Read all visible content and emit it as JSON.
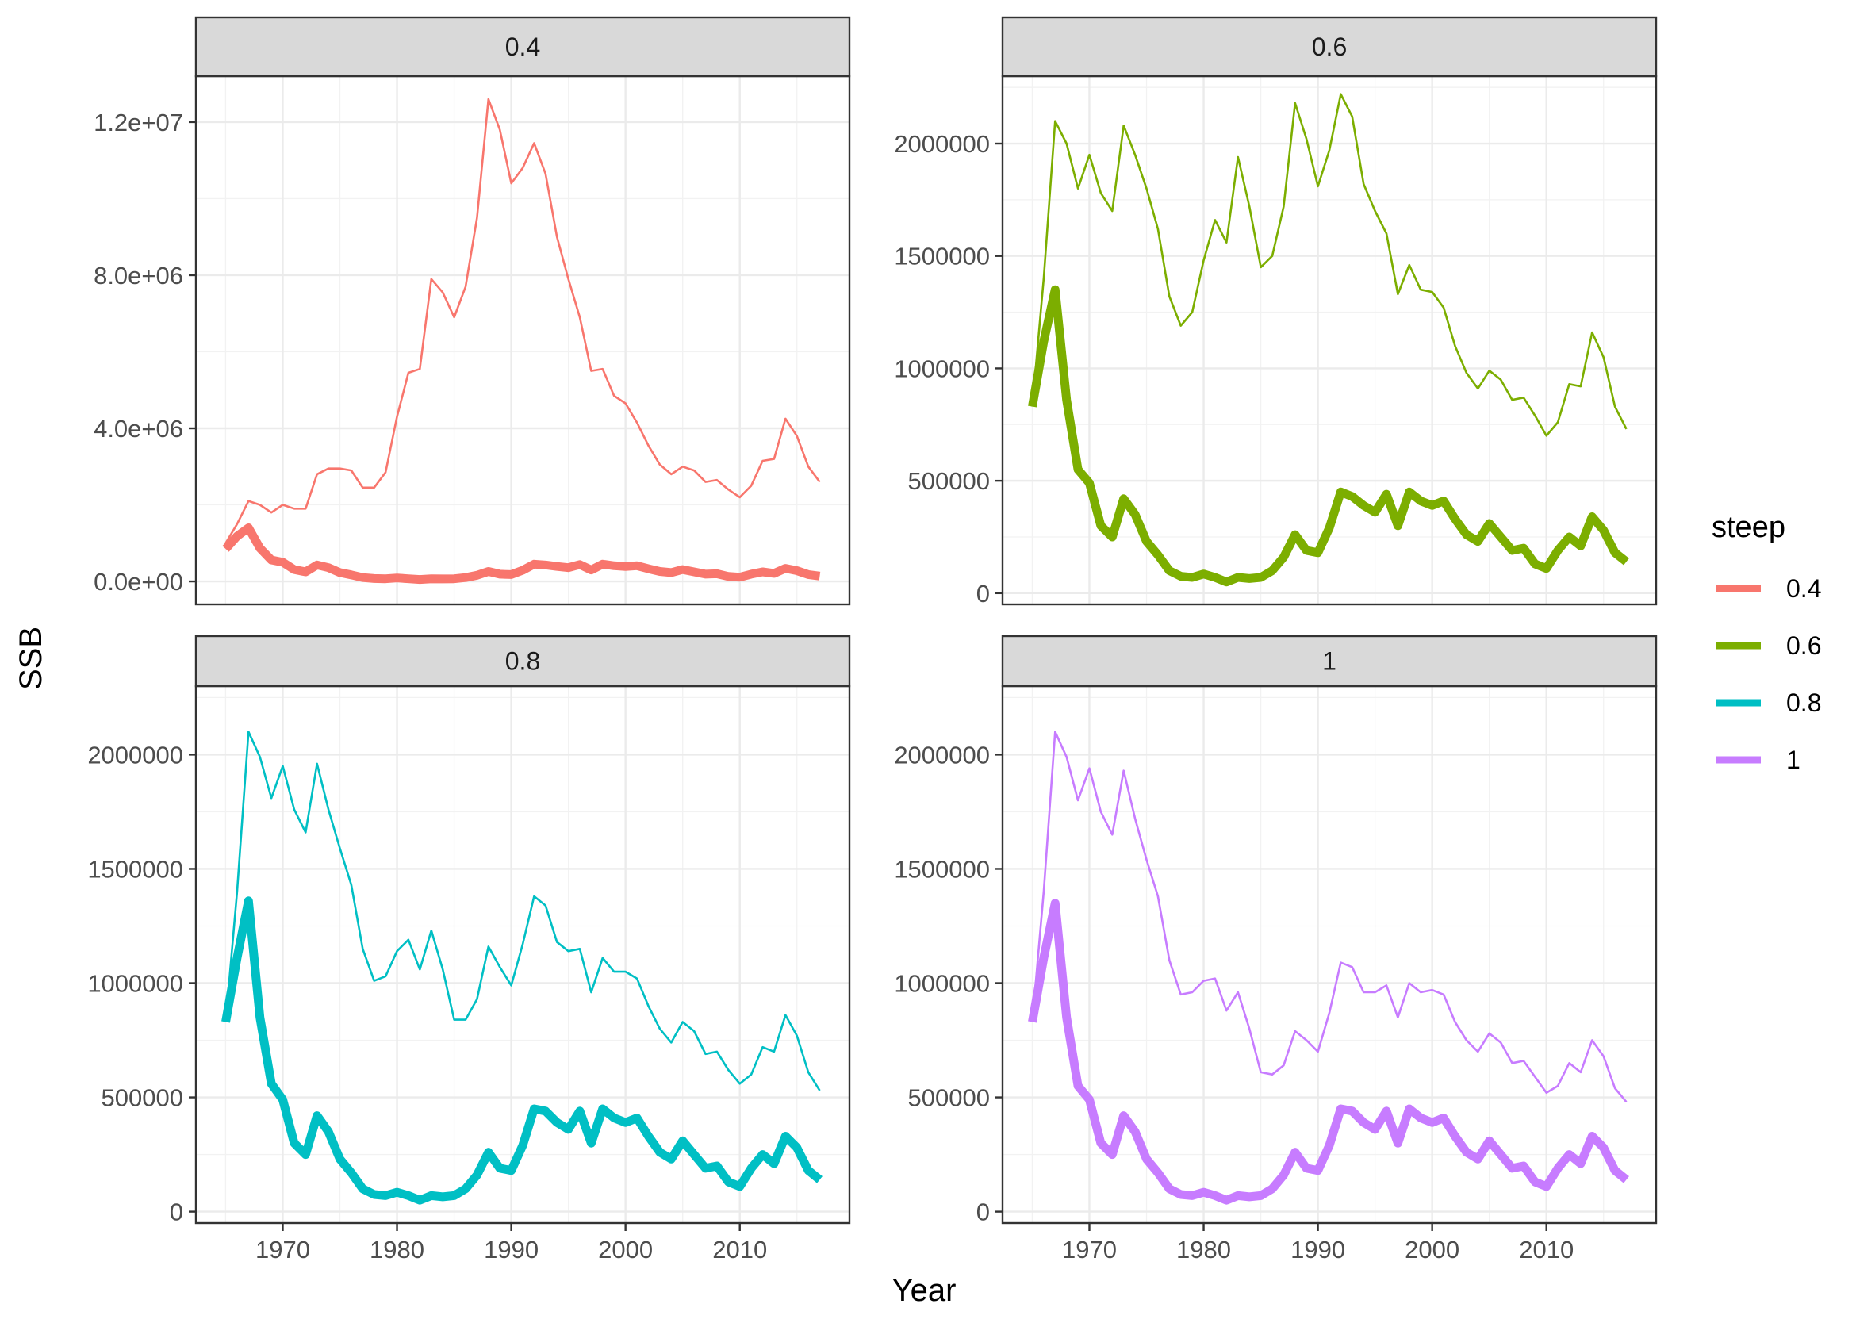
{
  "chart_data": {
    "type": "line",
    "xlabel": "Year",
    "ylabel": "SSB",
    "x_ticks": [
      "1970",
      "1980",
      "1990",
      "2000",
      "2010"
    ],
    "x_tick_values": [
      1970,
      1980,
      1990,
      2000,
      2010
    ],
    "xlim": [
      1962.4,
      2019.6
    ],
    "grid": true,
    "legend": {
      "title": "steep",
      "placement": "right",
      "entries": [
        {
          "label": "0.4",
          "color": "#F8766D"
        },
        {
          "label": "0.6",
          "color": "#7CAE00"
        },
        {
          "label": "0.8",
          "color": "#00BFC4"
        },
        {
          "label": "1",
          "color": "#C77CFF"
        }
      ]
    },
    "x": [
      1965,
      1966,
      1967,
      1968,
      1969,
      1970,
      1971,
      1972,
      1973,
      1974,
      1975,
      1976,
      1977,
      1978,
      1979,
      1980,
      1981,
      1982,
      1983,
      1984,
      1985,
      1986,
      1987,
      1988,
      1989,
      1990,
      1991,
      1992,
      1993,
      1994,
      1995,
      1996,
      1997,
      1998,
      1999,
      2000,
      2001,
      2002,
      2003,
      2004,
      2005,
      2006,
      2007,
      2008,
      2009,
      2010,
      2011,
      2012,
      2013,
      2014,
      2015,
      2016,
      2017
    ],
    "panels": [
      {
        "strip": "0.4",
        "color": "#F8766D",
        "ylim": [
          -600000,
          13200000
        ],
        "y_ticks": [
          "0.0e+00",
          "4.0e+06",
          "8.0e+06",
          "1.2e+07"
        ],
        "y_tick_values": [
          0,
          4000000,
          8000000,
          12000000
        ],
        "series": [
          {
            "role": "thin",
            "values": [
              1000000,
              1500000,
              2100000,
              2000000,
              1800000,
              2000000,
              1900000,
              1900000,
              2800000,
              2950000,
              2950000,
              2900000,
              2450000,
              2450000,
              2850000,
              4300000,
              5450000,
              5550000,
              7900000,
              7550000,
              6900000,
              7700000,
              9500000,
              12600000,
              11800000,
              10400000,
              10800000,
              11450000,
              10650000,
              9000000,
              7900000,
              6900000,
              5500000,
              5550000,
              4850000,
              4650000,
              4150000,
              3550000,
              3050000,
              2800000,
              3000000,
              2900000,
              2600000,
              2650000,
              2400000,
              2200000,
              2500000,
              3150000,
              3200000,
              4250000,
              3800000,
              3000000,
              2600000
            ]
          },
          {
            "role": "thick",
            "values": [
              850000,
              1180000,
              1400000,
              870000,
              560000,
              500000,
              310000,
              250000,
              430000,
              360000,
              230000,
              170000,
              100000,
              75000,
              70000,
              90000,
              70000,
              50000,
              70000,
              65000,
              70000,
              100000,
              160000,
              260000,
              190000,
              180000,
              290000,
              450000,
              430000,
              390000,
              360000,
              440000,
              300000,
              450000,
              410000,
              390000,
              410000,
              330000,
              260000,
              230000,
              310000,
              250000,
              190000,
              200000,
              130000,
              110000,
              190000,
              250000,
              210000,
              340000,
              280000,
              180000,
              140000
            ]
          }
        ]
      },
      {
        "strip": "0.6",
        "color": "#7CAE00",
        "ylim": [
          -50000,
          2300000
        ],
        "y_ticks": [
          "0",
          "500000",
          "1000000",
          "1500000",
          "2000000"
        ],
        "y_tick_values": [
          0,
          500000,
          1000000,
          1500000,
          2000000
        ],
        "series": [
          {
            "role": "thin",
            "values": [
              830000,
              1400000,
              2100000,
              2000000,
              1800000,
              1950000,
              1780000,
              1700000,
              2080000,
              1950000,
              1800000,
              1620000,
              1320000,
              1190000,
              1250000,
              1480000,
              1660000,
              1560000,
              1940000,
              1720000,
              1450000,
              1500000,
              1720000,
              2180000,
              2020000,
              1810000,
              1970000,
              2220000,
              2120000,
              1820000,
              1700000,
              1600000,
              1330000,
              1460000,
              1350000,
              1340000,
              1270000,
              1100000,
              980000,
              910000,
              990000,
              950000,
              860000,
              870000,
              790000,
              700000,
              760000,
              930000,
              920000,
              1160000,
              1050000,
              830000,
              730000
            ]
          },
          {
            "role": "thick",
            "values": [
              830000,
              1120000,
              1350000,
              860000,
              550000,
              490000,
              300000,
              250000,
              420000,
              350000,
              230000,
              170000,
              100000,
              75000,
              70000,
              85000,
              70000,
              50000,
              70000,
              65000,
              70000,
              100000,
              160000,
              260000,
              190000,
              180000,
              290000,
              450000,
              430000,
              390000,
              360000,
              440000,
              300000,
              450000,
              410000,
              390000,
              410000,
              330000,
              260000,
              230000,
              310000,
              250000,
              190000,
              200000,
              130000,
              110000,
              190000,
              250000,
              210000,
              340000,
              280000,
              180000,
              140000
            ]
          }
        ]
      },
      {
        "strip": "0.8",
        "color": "#00BFC4",
        "ylim": [
          -50000,
          2300000
        ],
        "y_ticks": [
          "0",
          "500000",
          "1000000",
          "1500000",
          "2000000"
        ],
        "y_tick_values": [
          0,
          500000,
          1000000,
          1500000,
          2000000
        ],
        "series": [
          {
            "role": "thin",
            "values": [
              830000,
              1400000,
              2100000,
              1990000,
              1810000,
              1950000,
              1760000,
              1660000,
              1960000,
              1760000,
              1590000,
              1430000,
              1150000,
              1010000,
              1030000,
              1140000,
              1190000,
              1060000,
              1230000,
              1060000,
              840000,
              840000,
              930000,
              1160000,
              1070000,
              990000,
              1170000,
              1380000,
              1340000,
              1180000,
              1140000,
              1150000,
              960000,
              1110000,
              1050000,
              1050000,
              1020000,
              900000,
              800000,
              740000,
              830000,
              790000,
              690000,
              700000,
              620000,
              560000,
              600000,
              720000,
              700000,
              860000,
              770000,
              610000,
              530000
            ]
          },
          {
            "role": "thick",
            "values": [
              830000,
              1110000,
              1360000,
              850000,
              560000,
              490000,
              300000,
              250000,
              420000,
              350000,
              230000,
              170000,
              100000,
              75000,
              70000,
              85000,
              70000,
              50000,
              70000,
              65000,
              70000,
              100000,
              160000,
              260000,
              190000,
              180000,
              290000,
              450000,
              440000,
              390000,
              360000,
              440000,
              300000,
              450000,
              410000,
              390000,
              410000,
              330000,
              260000,
              230000,
              310000,
              250000,
              190000,
              200000,
              130000,
              110000,
              190000,
              250000,
              210000,
              330000,
              280000,
              180000,
              140000
            ]
          }
        ]
      },
      {
        "strip": "1",
        "color": "#C77CFF",
        "ylim": [
          -50000,
          2300000
        ],
        "y_ticks": [
          "0",
          "500000",
          "1000000",
          "1500000",
          "2000000"
        ],
        "y_tick_values": [
          0,
          500000,
          1000000,
          1500000,
          2000000
        ],
        "series": [
          {
            "role": "thin",
            "values": [
              830000,
              1400000,
              2100000,
              1990000,
              1800000,
              1940000,
              1750000,
              1650000,
              1930000,
              1720000,
              1540000,
              1380000,
              1100000,
              950000,
              960000,
              1010000,
              1020000,
              880000,
              960000,
              800000,
              610000,
              600000,
              640000,
              790000,
              750000,
              700000,
              870000,
              1090000,
              1070000,
              960000,
              960000,
              990000,
              850000,
              1000000,
              960000,
              970000,
              950000,
              830000,
              750000,
              700000,
              780000,
              740000,
              650000,
              660000,
              590000,
              520000,
              550000,
              650000,
              610000,
              750000,
              680000,
              540000,
              480000
            ]
          },
          {
            "role": "thick",
            "values": [
              830000,
              1110000,
              1350000,
              850000,
              550000,
              490000,
              300000,
              250000,
              420000,
              350000,
              230000,
              170000,
              100000,
              75000,
              70000,
              85000,
              70000,
              50000,
              70000,
              65000,
              70000,
              100000,
              160000,
              260000,
              190000,
              180000,
              290000,
              450000,
              440000,
              390000,
              360000,
              440000,
              300000,
              450000,
              410000,
              390000,
              410000,
              330000,
              260000,
              230000,
              310000,
              250000,
              190000,
              200000,
              130000,
              110000,
              190000,
              250000,
              210000,
              330000,
              280000,
              180000,
              140000
            ]
          }
        ]
      }
    ]
  }
}
